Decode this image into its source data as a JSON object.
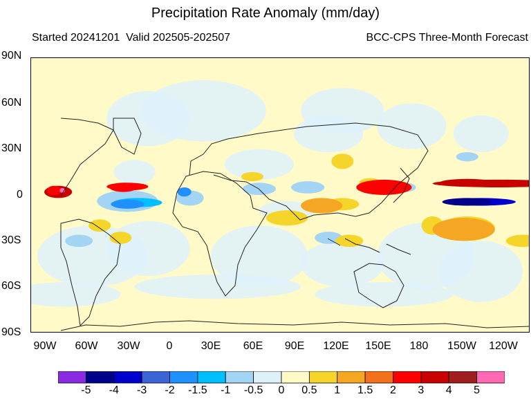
{
  "header": {
    "title": "Precipitation Rate Anomaly (mm/day)",
    "subtitle_left": "Started 20241201  Valid 202505-202507",
    "subtitle_right": "BCC-CPS Three-Month Forecast"
  },
  "axes": {
    "lat_labels": [
      "90N",
      "60N",
      "30N",
      "0",
      "30S",
      "60S",
      "90S"
    ],
    "lon_labels": [
      "90W",
      "60W",
      "30W",
      "0",
      "30E",
      "60E",
      "90E",
      "120E",
      "150E",
      "180",
      "150W",
      "120W"
    ],
    "lon_range": [
      -105,
      -75
    ],
    "lat_range": [
      -90,
      90
    ]
  },
  "colorbar": {
    "labels": [
      "-5",
      "-4",
      "-3",
      "-2",
      "-1.5",
      "-1",
      "-0.5",
      "0",
      "0.5",
      "1",
      "1.5",
      "2",
      "3",
      "4",
      "5"
    ],
    "colors": [
      "#8a2be2",
      "#00008b",
      "#0000cd",
      "#3a64d8",
      "#1e90ff",
      "#00bfff",
      "#a4d4f4",
      "#def1fb",
      "#fffac8",
      "#f5d52a",
      "#f5a623",
      "#f4711c",
      "#ff0000",
      "#c80000",
      "#a01e1e",
      "#ff69b4"
    ]
  },
  "map_colors": {
    "background": "#fffac8",
    "light_blue": "#def1fb",
    "mid_blue": "#a4d4f4",
    "blue": "#1e90ff",
    "dark_blue": "#00008b",
    "yellow": "#f5d52a",
    "orange": "#f5a623",
    "red": "#ff0000",
    "dark_red": "#c80000",
    "pink": "#ff69b4"
  },
  "chart_data": {
    "type": "heatmap",
    "title": "Precipitation Rate Anomaly (mm/day)",
    "projection": "cylindrical equidistant, centered 105E",
    "lon_range": [
      -105,
      -75
    ],
    "lat_range": [
      -90,
      90
    ],
    "units": "mm/day",
    "features": [
      {
        "region": "western equatorial Pacific 130E-170E",
        "lon": [
          130,
          170
        ],
        "lat": [
          0,
          10
        ],
        "value": 2
      },
      {
        "region": "central Pacific ITCZ north 180-120W",
        "lon": [
          -175,
          -80
        ],
        "lat": [
          5,
          10
        ],
        "value": 3
      },
      {
        "region": "central Pacific equator 170W-120W",
        "lon": [
          -165,
          -115
        ],
        "lat": [
          -7,
          -2
        ],
        "value": -4
      },
      {
        "region": "eastern Pacific near South America",
        "lon": [
          -95,
          -75
        ],
        "lat": [
          -2,
          6
        ],
        "value": 3
      },
      {
        "region": "tropical Atlantic north 50W-20W",
        "lon": [
          -50,
          -20
        ],
        "lat": [
          3,
          8
        ],
        "value": 2
      },
      {
        "region": "equatorial Atlantic south 45W-10W",
        "lon": [
          -45,
          -10
        ],
        "lat": [
          -8,
          -2
        ],
        "value": -1.5
      },
      {
        "region": "Maritime Continent / eastern Indian Ocean",
        "lon": [
          90,
          120
        ],
        "lat": [
          -12,
          -2
        ],
        "value": 1
      },
      {
        "region": "southwest Pacific 170W-130W",
        "lon": [
          -175,
          -130
        ],
        "lat": [
          -30,
          -15
        ],
        "value": 1
      }
    ]
  }
}
